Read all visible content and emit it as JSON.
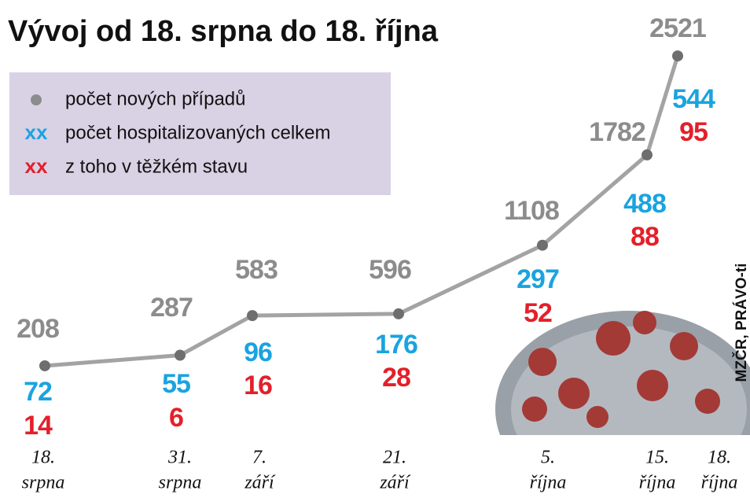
{
  "chart_data": {
    "type": "line",
    "title": "Vývoj od 18. srpna do 18. října",
    "categories": [
      [
        "18.",
        "srpna"
      ],
      [
        "31.",
        "srpna"
      ],
      [
        "7.",
        "září"
      ],
      [
        "21.",
        "září"
      ],
      [
        "5.",
        "října"
      ],
      [
        "15.",
        "října"
      ],
      [
        "18.",
        "října"
      ]
    ],
    "series": [
      {
        "name": "počet nových případů",
        "color": "#8c8c8c",
        "values": [
          208,
          287,
          583,
          596,
          1108,
          1782,
          2521
        ]
      },
      {
        "name": "počet hospitalizovaných celkem",
        "marker": "xx",
        "color": "#1aa3e0",
        "values": [
          72,
          55,
          96,
          176,
          297,
          488,
          544
        ]
      },
      {
        "name": "z toho v těžkém stavu",
        "marker": "xx",
        "color": "#e3202a",
        "values": [
          14,
          6,
          16,
          28,
          52,
          88,
          95
        ]
      }
    ],
    "source": "MZČR, PRÁVO-ti"
  }
}
